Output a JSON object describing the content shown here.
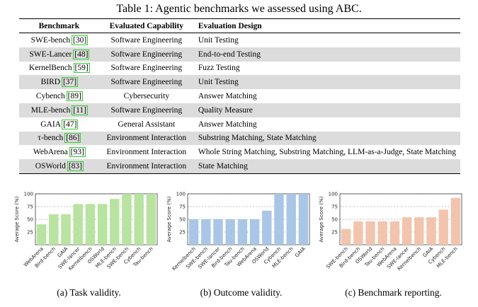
{
  "caption": "Table 1: Agentic benchmarks we assessed using ABC.",
  "table": {
    "headers": [
      "Benchmark",
      "Evaluated Capability",
      "Evaluation Design"
    ],
    "rows": [
      {
        "name": "SWE-bench",
        "ref": "[30]",
        "capability": "Software Engineering",
        "design": "Unit Testing",
        "shade": false
      },
      {
        "name": "SWE-Lancer",
        "ref": "[48]",
        "capability": "Software Engineering",
        "design": "End-to-end Testing",
        "shade": true
      },
      {
        "name": "KernelBench",
        "ref": "[59]",
        "capability": "Software Engineering",
        "design": "Fuzz Testing",
        "shade": false
      },
      {
        "name": "BIRD",
        "ref": "[37]",
        "capability": "Software Engineering",
        "design": "Unit Testing",
        "shade": true
      },
      {
        "name": "Cybench",
        "ref": "[89]",
        "capability": "Cybersecurity",
        "design": "Answer Matching",
        "shade": false
      },
      {
        "name": "MLE-bench",
        "ref": "[11]",
        "capability": "Software Engineering",
        "design": "Quality Measure",
        "shade": true
      },
      {
        "name": "GAIA",
        "ref": "[47]",
        "capability": "General Assistant",
        "design": "Answer Matching",
        "shade": false
      },
      {
        "name": "τ-bench",
        "ref": "[86]",
        "capability": "Environment Interaction",
        "design": "Substring Matching, State Matching",
        "shade": true
      },
      {
        "name": "WebArena",
        "ref": "[93]",
        "capability": "Environment Interaction",
        "design": "Whole String Matching, Substring Matching, LLM-as-a-Judge, State Matching",
        "shade": false
      },
      {
        "name": "OSWorld",
        "ref": "[83]",
        "capability": "Environment Interaction",
        "design": "State Matching",
        "shade": true
      }
    ]
  },
  "chart_data": [
    {
      "type": "bar",
      "caption": "(a) Task validity.",
      "ylabel": "Average Score (%)",
      "ylim": [
        0,
        100
      ],
      "yticks": [
        25,
        50,
        75,
        100
      ],
      "color": "#b8e3a0",
      "categories": [
        "WebArena",
        "Bird-bench",
        "GAIA",
        "SWE-lancer",
        "Kernelbench",
        "OSWorld",
        "MLE-bench",
        "SWE-bench",
        "Cybench",
        "Tau-bench"
      ],
      "values": [
        40,
        60,
        60,
        80,
        80,
        80,
        90,
        100,
        100,
        100
      ]
    },
    {
      "type": "bar",
      "caption": "(b) Outcome validity.",
      "ylabel": "Average Score (%)",
      "ylim": [
        0,
        100
      ],
      "yticks": [
        25,
        50,
        75,
        100
      ],
      "color": "#a9c6e6",
      "categories": [
        "Kernelbench",
        "SWE-bench",
        "SWE-lancer",
        "Bird-bench",
        "Tau-bench",
        "WebArena",
        "OSWorld",
        "Cybench",
        "MLE-bench",
        "GAIA"
      ],
      "values": [
        50,
        50,
        50,
        50,
        50,
        50,
        67,
        100,
        100,
        100
      ]
    },
    {
      "type": "bar",
      "caption": "(c) Benchmark reporting.",
      "ylabel": "Average Score (%)",
      "ylim": [
        0,
        100
      ],
      "yticks": [
        25,
        50,
        75,
        100
      ],
      "color": "#f2c4ad",
      "categories": [
        "SWE-bench",
        "Bird-bench",
        "OSWorld",
        "Tau-bench",
        "WebArena",
        "SWE-lancer",
        "Kernelbench",
        "GAIA",
        "Cybench",
        "MLE-bench"
      ],
      "values": [
        31,
        46,
        46,
        46,
        46,
        54,
        54,
        54,
        69,
        92
      ]
    }
  ]
}
